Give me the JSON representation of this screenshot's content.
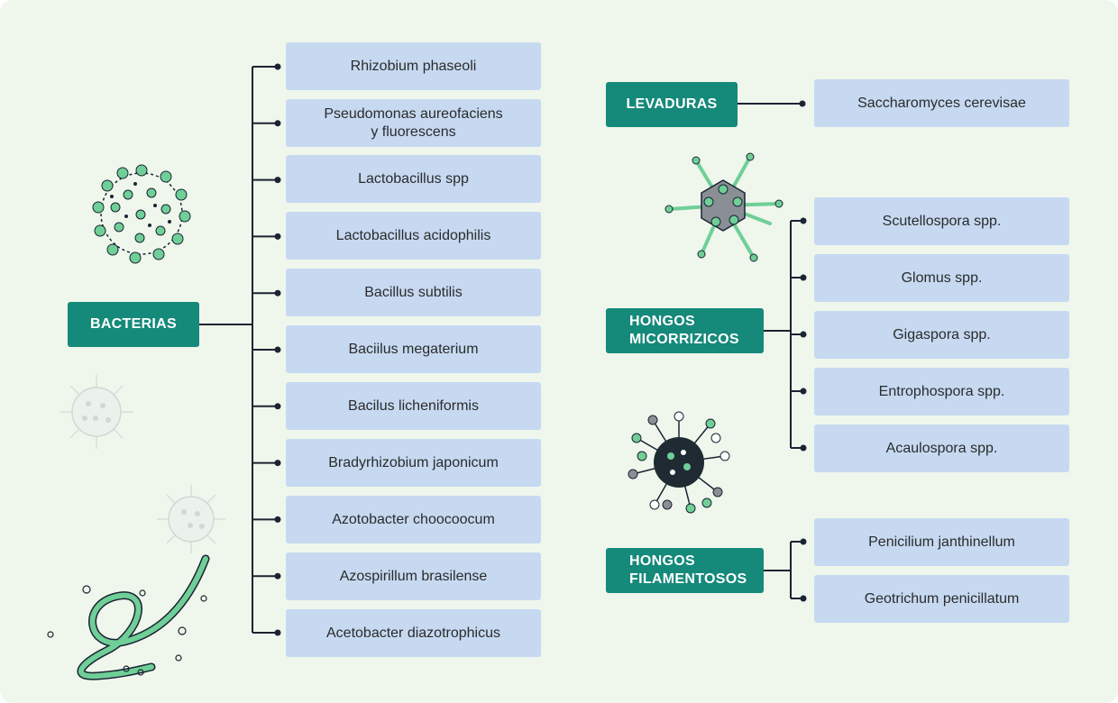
{
  "categories": {
    "bacterias": "BACTERIAS",
    "levaduras": "LEVADURAS",
    "micorrizicos": "HONGOS\nMICORRIZICOS",
    "filamentosos": "HONGOS\nFILAMENTOSOS"
  },
  "bacterias": [
    "Rhizobium phaseoli",
    "Pseudomonas aureofaciens\ny fluorescens",
    "Lactobacillus spp",
    "Lactobacillus acidophilis",
    "Bacillus subtilis",
    "Baciilus megaterium",
    "Bacilus licheniformis",
    "Bradyrhizobium japonicum",
    "Azotobacter choocoocum",
    "Azospirillum brasilense",
    "Acetobacter diazotrophicus"
  ],
  "levaduras": [
    "Saccharomyces cerevisae"
  ],
  "micorrizicos": [
    "Scutellospora spp.",
    "Glomus spp.",
    "Gigaspora spp.",
    "Entrophospora spp.",
    "Acaulospora spp."
  ],
  "filamentosos": [
    "Penicilium janthinellum",
    "Geotrichum penicillatum"
  ],
  "colors": {
    "background": "#eff6ec",
    "category": "#15897a",
    "item": "#c6d9f1",
    "connector": "#1a2433",
    "microbe_green": "#6fcf97"
  },
  "icons": [
    "bacteria-cluster-icon",
    "virus-faded-icon",
    "bacteriophage-icon",
    "spiky-microbe-icon",
    "filament-bacteria-icon"
  ]
}
